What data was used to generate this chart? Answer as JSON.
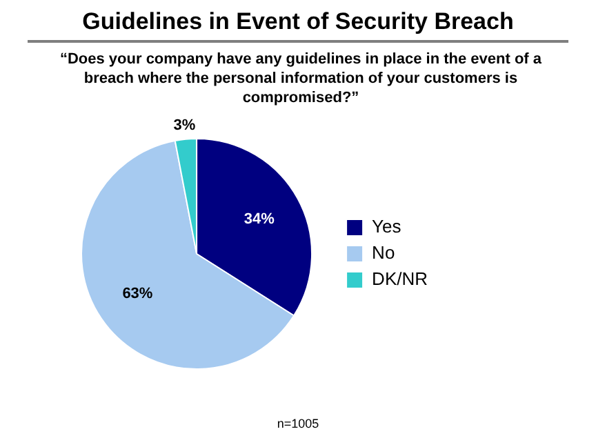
{
  "chart_data": {
    "type": "pie",
    "title": "Guidelines in Event of Security Breach",
    "subtitle": "“Does your company have any guidelines in place in the event of a breach where the personal information of your customers is compromised?”",
    "categories": [
      "Yes",
      "No",
      "DK/NR"
    ],
    "values": [
      34,
      63,
      3
    ],
    "colors": [
      "#000080",
      "#a6caf0",
      "#33cccc"
    ],
    "value_labels": [
      "34%",
      "63%",
      "3%"
    ],
    "legend": "right",
    "annotations": [
      "n=1005"
    ]
  }
}
